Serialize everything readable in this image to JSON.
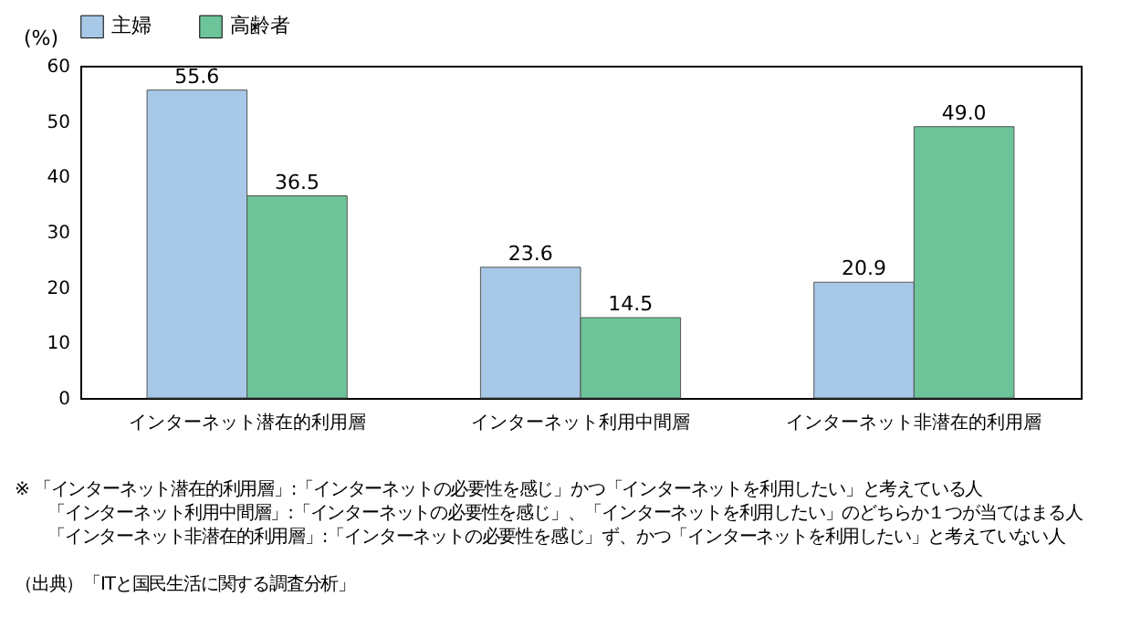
{
  "chart_data": {
    "type": "bar",
    "ylabel": "(%)",
    "categories": [
      "インターネット潜在的利用層",
      "インターネット利用中間層",
      "インターネット非潜在的利用層"
    ],
    "series": [
      {
        "name": "主婦",
        "color": "#a8c8e8",
        "values": [
          55.6,
          23.6,
          20.9
        ]
      },
      {
        "name": "高齢者",
        "color": "#6cc498",
        "values": [
          36.5,
          14.5,
          49.0
        ]
      }
    ],
    "ylim": [
      0,
      60
    ],
    "yticks": [
      0,
      10,
      20,
      30,
      40,
      50,
      60
    ],
    "grid": false,
    "legend": "top",
    "value_labels": [
      [
        "55.6",
        "23.6",
        "20.9"
      ],
      [
        "36.5",
        "14.5",
        "49.0"
      ]
    ],
    "annotations": [
      "※ 「インターネット潜在的利用層」:「インターネットの必要性を感じ」かつ「インターネットを利用したい」と考えている人",
      "「インターネット利用中間層」:「インターネットの必要性を感じ」、「インターネットを利用したい」のどちらか１つが当てはまる人",
      "「インターネット非潜在的利用層」:「インターネットの必要性を感じ」ず、かつ「インターネットを利用したい」と考えていない人",
      "（出典）「ITと国民生活に関する調査分析」"
    ]
  }
}
